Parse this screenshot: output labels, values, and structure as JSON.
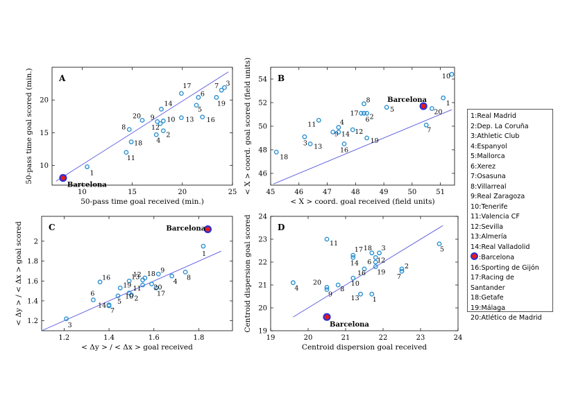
{
  "colors": {
    "point_stroke": "#2a8fd0",
    "highlight_fill": "#e21d1d",
    "highlight_stroke": "#2b2fd6",
    "fit_line": "#5555dd"
  },
  "legend": {
    "items": [
      {
        "num": "1",
        "text": "1:Real Madrid"
      },
      {
        "num": "2",
        "text": "2:Dep. La Coruña"
      },
      {
        "num": "3",
        "text": "3:Athletic Club"
      },
      {
        "num": "4",
        "text": "4:Espanyol"
      },
      {
        "num": "5",
        "text": "5:Mallorca"
      },
      {
        "num": "6",
        "text": "6:Xerez"
      },
      {
        "num": "7",
        "text": "7:Osasuna"
      },
      {
        "num": "8",
        "text": "8:Villarreal"
      },
      {
        "num": "9",
        "text": "9:Real Zaragoza"
      },
      {
        "num": "10",
        "text": "10:Tenerife"
      },
      {
        "num": "11",
        "text": "11:Valencia CF"
      },
      {
        "num": "12",
        "text": "12:Sevilla"
      },
      {
        "num": "13",
        "text": "13:Almería"
      },
      {
        "num": "14",
        "text": "14:Real Valladolid"
      },
      {
        "num": "15",
        "text": ":Barcelona",
        "marker": true
      },
      {
        "num": "16",
        "text": "16:Sporting de Gijón"
      },
      {
        "num": "17",
        "text": "17:Racing de Santander",
        "wrap": true
      },
      {
        "num": "18",
        "text": "18:Getafe"
      },
      {
        "num": "19",
        "text": "19:Málaga"
      },
      {
        "num": "20",
        "text": "20:Atlético de Madrid"
      }
    ]
  },
  "chart_data": [
    {
      "panel": "A",
      "type": "scatter",
      "xlabel": "50-pass time goal received (min.)",
      "ylabel": "50-pass time goal scored (min.)",
      "xlim": [
        7,
        25
      ],
      "ylim": [
        7,
        25
      ],
      "xticks": [
        10,
        15,
        20,
        25
      ],
      "yticks": [
        10,
        15,
        20
      ],
      "fit": {
        "x": [
          7.4,
          24.6
        ],
        "y": [
          7.6,
          24.3
        ]
      },
      "points": [
        {
          "label": "1",
          "x": 10.5,
          "y": 9.8
        },
        {
          "label": "2",
          "x": 18.1,
          "y": 15.3
        },
        {
          "label": "3",
          "x": 24.2,
          "y": 21.9
        },
        {
          "label": "4",
          "x": 17.4,
          "y": 14.7
        },
        {
          "label": "5",
          "x": 21.4,
          "y": 19.2
        },
        {
          "label": "6",
          "x": 21.6,
          "y": 20.4
        },
        {
          "label": "7",
          "x": 23.9,
          "y": 21.5
        },
        {
          "label": "8",
          "x": 14.7,
          "y": 15.5
        },
        {
          "label": "9",
          "x": 17.5,
          "y": 16.7
        },
        {
          "label": "10",
          "x": 18.1,
          "y": 16.8
        },
        {
          "label": "11",
          "x": 14.4,
          "y": 12.0
        },
        {
          "label": "12",
          "x": 17.8,
          "y": 16.4
        },
        {
          "label": "13",
          "x": 19.9,
          "y": 17.3
        },
        {
          "label": "14",
          "x": 17.9,
          "y": 18.6
        },
        {
          "label": "Barcelona",
          "x": 8.1,
          "y": 8.1,
          "highlight": true
        },
        {
          "label": "16",
          "x": 22.0,
          "y": 17.4
        },
        {
          "label": "17",
          "x": 19.9,
          "y": 21.0
        },
        {
          "label": "18",
          "x": 14.9,
          "y": 13.6
        },
        {
          "label": "19",
          "x": 23.4,
          "y": 20.4
        },
        {
          "label": "20",
          "x": 16.0,
          "y": 16.9
        }
      ]
    },
    {
      "panel": "B",
      "type": "scatter",
      "xlabel": "< X > coord. goal received (field units)",
      "ylabel": "< X > coord. goal scored (field units)",
      "xlim": [
        45,
        51.5
      ],
      "ylim": [
        45,
        55
      ],
      "xticks": [
        45,
        46,
        47,
        48,
        49,
        50,
        51
      ],
      "yticks": [
        46,
        48,
        50,
        52,
        54
      ],
      "fit": {
        "x": [
          45.1,
          51.4
        ],
        "y": [
          45.1,
          51.4
        ]
      },
      "points": [
        {
          "label": "1",
          "x": 51.1,
          "y": 52.4
        },
        {
          "label": "2",
          "x": 48.4,
          "y": 51.1
        },
        {
          "label": "3",
          "x": 46.2,
          "y": 49.1
        },
        {
          "label": "4",
          "x": 47.4,
          "y": 49.9
        },
        {
          "label": "5",
          "x": 49.1,
          "y": 51.6
        },
        {
          "label": "6",
          "x": 48.3,
          "y": 51.1
        },
        {
          "label": "7",
          "x": 50.5,
          "y": 50.1
        },
        {
          "label": "8",
          "x": 48.3,
          "y": 51.9
        },
        {
          "label": "9",
          "x": 47.2,
          "y": 49.5
        },
        {
          "label": "10",
          "x": 51.4,
          "y": 54.4
        },
        {
          "label": "11",
          "x": 46.7,
          "y": 50.5
        },
        {
          "label": "12",
          "x": 47.9,
          "y": 49.7
        },
        {
          "label": "13",
          "x": 46.4,
          "y": 48.5
        },
        {
          "label": "14",
          "x": 47.4,
          "y": 49.5
        },
        {
          "label": "Barcelona",
          "x": 50.4,
          "y": 51.7,
          "highlight": true
        },
        {
          "label": "16",
          "x": 47.6,
          "y": 48.5
        },
        {
          "label": "17",
          "x": 48.2,
          "y": 51.1
        },
        {
          "label": "18",
          "x": 45.2,
          "y": 47.8
        },
        {
          "label": "19",
          "x": 48.4,
          "y": 49.0
        },
        {
          "label": "20",
          "x": 50.7,
          "y": 51.5
        }
      ]
    },
    {
      "panel": "C",
      "type": "scatter",
      "xlabel": "< Δy > / < Δx > goal received",
      "ylabel": "< Δy > / < Δx > goal scored",
      "xlim": [
        1.1,
        1.95
      ],
      "ylim": [
        1.1,
        2.25
      ],
      "xticks": [
        1.2,
        1.4,
        1.6,
        1.8
      ],
      "yticks": [
        1.2,
        1.4,
        1.6,
        1.8,
        2.0
      ],
      "fit": {
        "x": [
          1.1,
          1.9
        ],
        "y": [
          1.1,
          1.9
        ]
      },
      "points": [
        {
          "label": "1",
          "x": 1.82,
          "y": 1.95
        },
        {
          "label": "2",
          "x": 1.5,
          "y": 1.46
        },
        {
          "label": "3",
          "x": 1.21,
          "y": 1.22
        },
        {
          "label": "4",
          "x": 1.68,
          "y": 1.65
        },
        {
          "label": "5",
          "x": 1.44,
          "y": 1.45
        },
        {
          "label": "6",
          "x": 1.33,
          "y": 1.41
        },
        {
          "label": "7",
          "x": 1.4,
          "y": 1.35
        },
        {
          "label": "8",
          "x": 1.74,
          "y": 1.69
        },
        {
          "label": "9",
          "x": 1.62,
          "y": 1.67
        },
        {
          "label": "10",
          "x": 1.49,
          "y": 1.48
        },
        {
          "label": "11",
          "x": 1.55,
          "y": 1.56
        },
        {
          "label": "12",
          "x": 1.55,
          "y": 1.61
        },
        {
          "label": "13",
          "x": 1.49,
          "y": 1.6
        },
        {
          "label": "14",
          "x": 1.4,
          "y": 1.36
        },
        {
          "label": "Barcelona",
          "x": 1.84,
          "y": 2.12,
          "highlight": true
        },
        {
          "label": "16",
          "x": 1.36,
          "y": 1.59
        },
        {
          "label": "17",
          "x": 1.61,
          "y": 1.53
        },
        {
          "label": "18",
          "x": 1.56,
          "y": 1.63
        },
        {
          "label": "19",
          "x": 1.45,
          "y": 1.53
        },
        {
          "label": "20",
          "x": 1.59,
          "y": 1.57
        }
      ]
    },
    {
      "panel": "D",
      "type": "scatter",
      "xlabel": "Centroid dispersion goal received",
      "ylabel": "Centroid dispersion goal scored",
      "xlim": [
        19,
        24
      ],
      "ylim": [
        19,
        24
      ],
      "xticks": [
        19,
        20,
        21,
        22,
        23,
        24
      ],
      "yticks": [
        19,
        20,
        21,
        22,
        23,
        24
      ],
      "fit": {
        "x": [
          19.6,
          23.6
        ],
        "y": [
          19.6,
          23.6
        ]
      },
      "points": [
        {
          "label": "1",
          "x": 21.7,
          "y": 20.6
        },
        {
          "label": "2",
          "x": 22.5,
          "y": 21.7
        },
        {
          "label": "3",
          "x": 21.9,
          "y": 22.4
        },
        {
          "label": "4",
          "x": 19.6,
          "y": 21.1
        },
        {
          "label": "5",
          "x": 23.5,
          "y": 22.8
        },
        {
          "label": "6",
          "x": 21.8,
          "y": 22.0
        },
        {
          "label": "7",
          "x": 22.5,
          "y": 21.6
        },
        {
          "label": "8",
          "x": 20.8,
          "y": 21.0
        },
        {
          "label": "9",
          "x": 20.5,
          "y": 20.8
        },
        {
          "label": "10",
          "x": 21.2,
          "y": 21.3
        },
        {
          "label": "11",
          "x": 20.5,
          "y": 23.0
        },
        {
          "label": "12",
          "x": 21.8,
          "y": 22.2
        },
        {
          "label": "13",
          "x": 21.4,
          "y": 20.6
        },
        {
          "label": "14",
          "x": 21.2,
          "y": 22.2
        },
        {
          "label": "Barcelona",
          "x": 20.5,
          "y": 19.6,
          "highlight": true
        },
        {
          "label": "16",
          "x": 21.5,
          "y": 21.7
        },
        {
          "label": "17",
          "x": 21.2,
          "y": 22.3
        },
        {
          "label": "18",
          "x": 21.7,
          "y": 22.4
        },
        {
          "label": "19",
          "x": 21.8,
          "y": 21.8
        },
        {
          "label": "20",
          "x": 20.5,
          "y": 20.9
        }
      ]
    }
  ]
}
